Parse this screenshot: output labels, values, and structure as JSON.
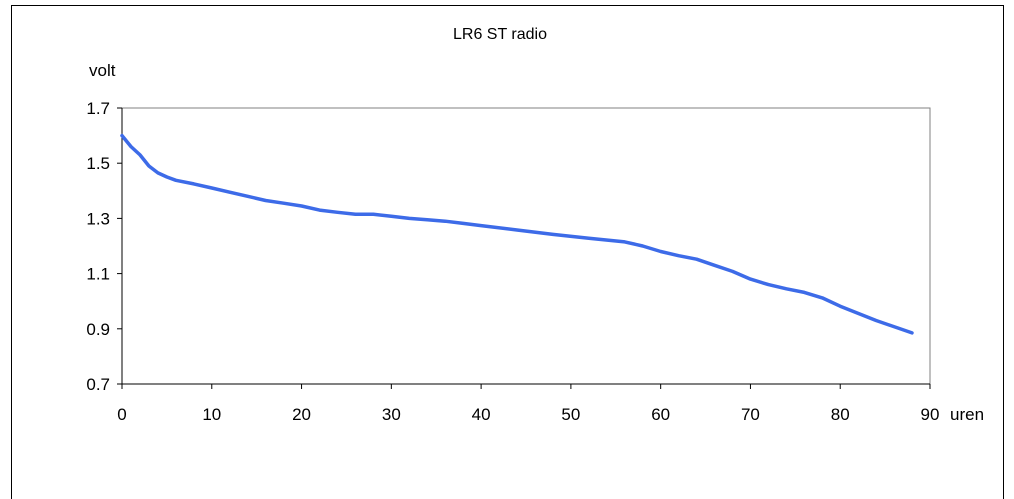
{
  "chart_data": {
    "type": "line",
    "title": "LR6 ST  radio",
    "xlabel": "uren",
    "ylabel": "volt",
    "xlim": [
      0,
      90
    ],
    "ylim": [
      0.7,
      1.7
    ],
    "x_ticks": [
      "0",
      "10",
      "20",
      "30",
      "40",
      "50",
      "60",
      "70",
      "80",
      "90"
    ],
    "y_ticks": [
      "0.7",
      "0.9",
      "1.1",
      "1.3",
      "1.5",
      "1.7"
    ],
    "grid": false,
    "legend": "none",
    "series": [
      {
        "color": "#3d6be8",
        "x": [
          0,
          1,
          2,
          3,
          4,
          5,
          6,
          8,
          10,
          12,
          14,
          16,
          18,
          20,
          22,
          24,
          26,
          28,
          30,
          32,
          34,
          36,
          38,
          40,
          44,
          48,
          52,
          56,
          58,
          60,
          62,
          64,
          66,
          68,
          70,
          72,
          74,
          76,
          78,
          80,
          84,
          88
        ],
        "y": [
          1.6,
          1.56,
          1.53,
          1.49,
          1.465,
          1.45,
          1.438,
          1.425,
          1.41,
          1.395,
          1.38,
          1.365,
          1.355,
          1.345,
          1.33,
          1.322,
          1.315,
          1.315,
          1.308,
          1.3,
          1.295,
          1.29,
          1.282,
          1.274,
          1.258,
          1.242,
          1.228,
          1.215,
          1.2,
          1.18,
          1.165,
          1.152,
          1.13,
          1.108,
          1.08,
          1.06,
          1.045,
          1.032,
          1.012,
          0.982,
          0.93,
          0.885
        ]
      }
    ]
  }
}
